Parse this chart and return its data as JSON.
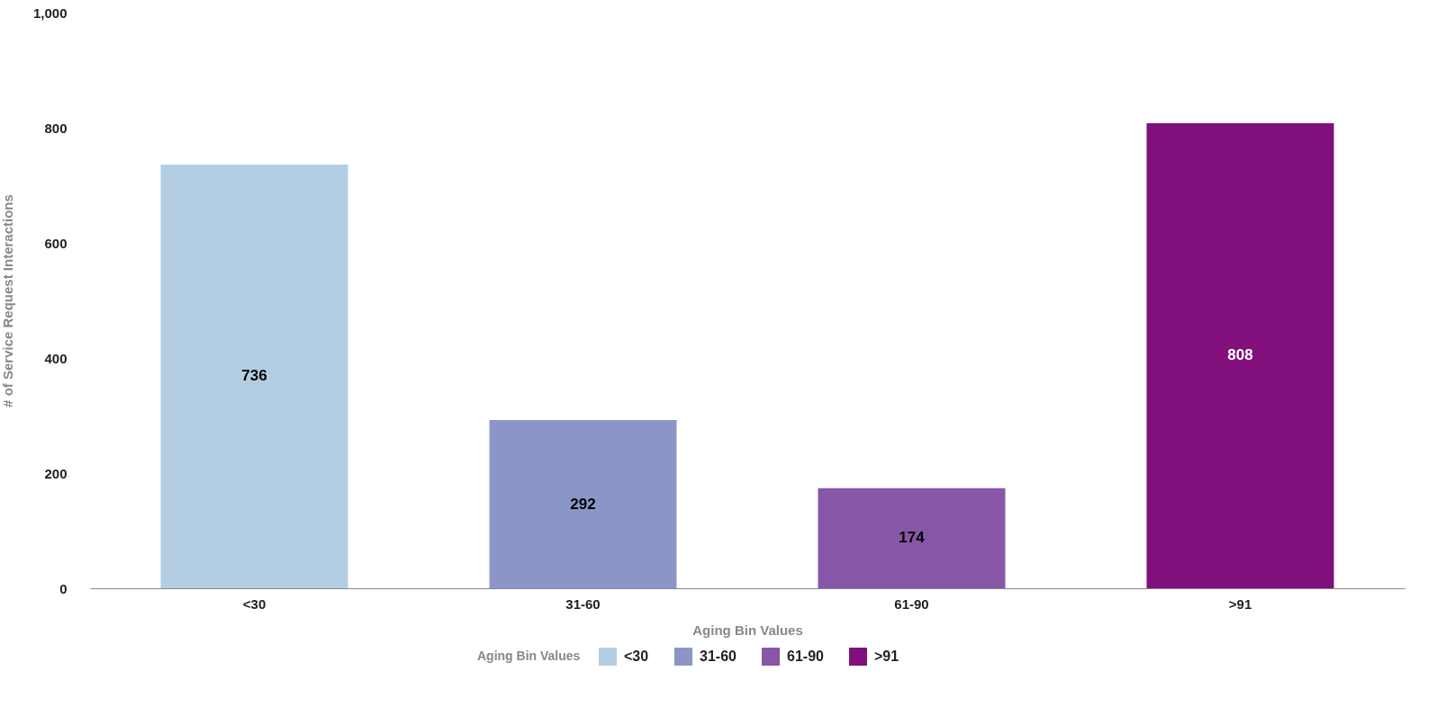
{
  "chart_data": {
    "type": "bar",
    "xlabel": "Aging Bin Values",
    "ylabel": "# of Service Request Interactions",
    "legend_title": "Aging Bin Values",
    "categories": [
      "<30",
      "31-60",
      "61-90",
      ">91"
    ],
    "series": [
      {
        "name": "<30",
        "color": "#b3cde3",
        "values": [
          736,
          null,
          null,
          null
        ]
      },
      {
        "name": "31-60",
        "color": "#8c96c6",
        "values": [
          null,
          292,
          null,
          null
        ]
      },
      {
        "name": "61-90",
        "color": "#8856a7",
        "values": [
          null,
          null,
          174,
          null
        ]
      },
      {
        "name": ">91",
        "color": "#810f7c",
        "values": [
          null,
          null,
          null,
          808
        ]
      }
    ],
    "ylim": [
      0,
      1000
    ],
    "yticks": [
      0,
      200,
      400,
      600,
      800,
      {
        "value": 1000,
        "label": "1,000"
      }
    ],
    "data_labels": true,
    "grid": false,
    "legend": "bottom"
  }
}
